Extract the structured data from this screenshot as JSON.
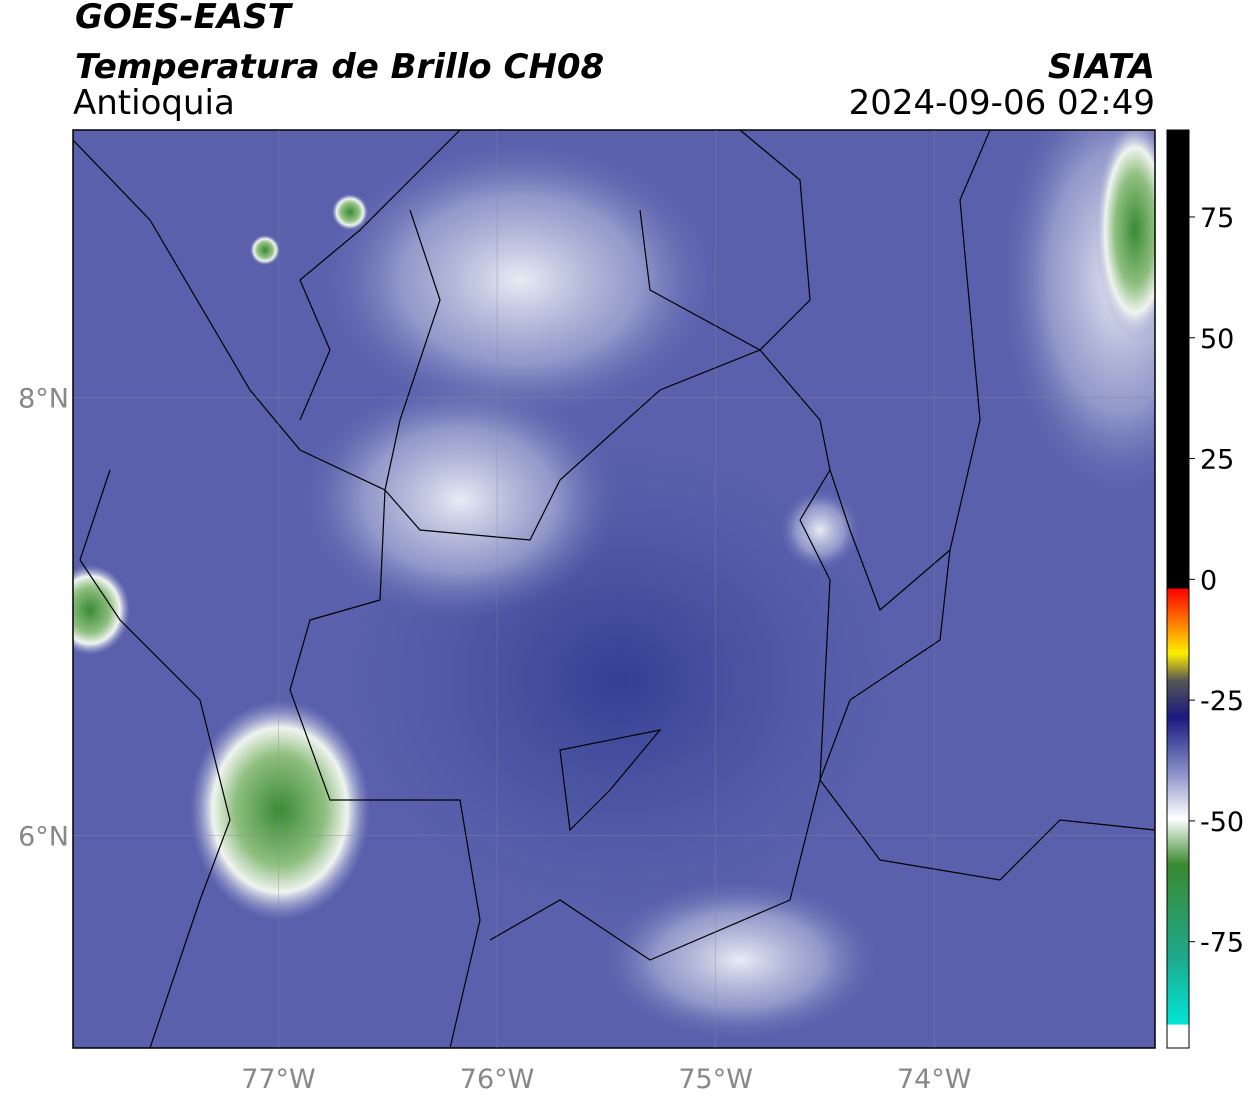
{
  "header": {
    "title": "GOES-EAST",
    "subtitle": "Temperatura de Brillo CH08",
    "region": "Antioquia",
    "source": "SIATA",
    "datetime": "2024-09-06 02:49"
  },
  "map": {
    "xlim": [
      -77.94,
      -72.99
    ],
    "ylim": [
      5.03,
      9.22
    ],
    "xticks": [
      {
        "value": -77,
        "label": "77°W"
      },
      {
        "value": -76,
        "label": "76°W"
      },
      {
        "value": -75,
        "label": "75°W"
      },
      {
        "value": -74,
        "label": "74°W"
      }
    ],
    "yticks": [
      {
        "value": 8,
        "label": "8°N"
      },
      {
        "value": 6,
        "label": "6°N"
      }
    ],
    "grid": true
  },
  "colorbar": {
    "lim": [
      -97,
      93
    ],
    "ticks": [
      75,
      50,
      25,
      0,
      -25,
      -50,
      -75
    ]
  }
}
